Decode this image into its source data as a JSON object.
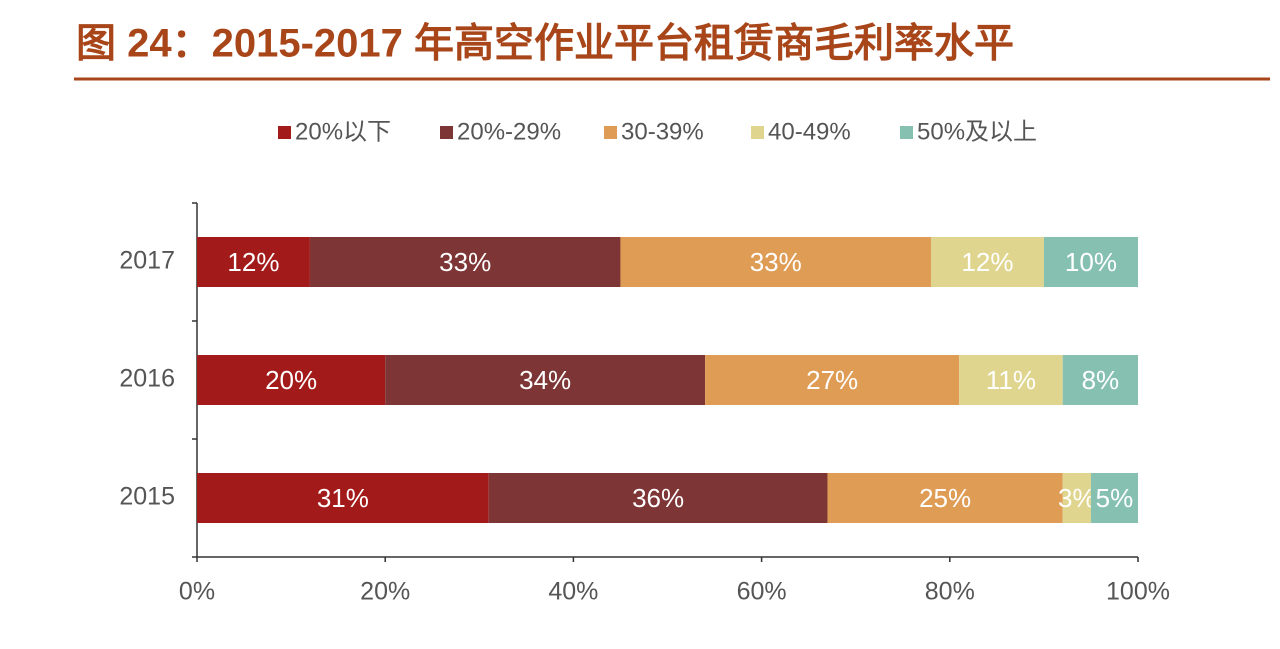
{
  "chart_data": {
    "type": "stacked-bar-horizontal",
    "title": "图 24：2015-2017 年高空作业平台租赁商毛利率水平",
    "categories": [
      "2017",
      "2016",
      "2015"
    ],
    "series": [
      {
        "name": "20%以下",
        "color": "#a31a1a",
        "values": [
          12,
          20,
          31
        ],
        "value_labels": [
          "12%",
          "20%",
          "31%"
        ]
      },
      {
        "name": "20%-29%",
        "color": "#7e3535",
        "values": [
          33,
          34,
          36
        ],
        "value_labels": [
          "33%",
          "34%",
          "36%"
        ]
      },
      {
        "name": "30-39%",
        "color": "#df9c55",
        "values": [
          33,
          27,
          25
        ],
        "value_labels": [
          "33%",
          "27%",
          "25%"
        ]
      },
      {
        "name": "40-49%",
        "color": "#e0d58e",
        "values": [
          12,
          11,
          3
        ],
        "value_labels": [
          "12%",
          "11%",
          "3%"
        ]
      },
      {
        "name": "50%及以上",
        "color": "#86c0b1",
        "values": [
          10,
          8,
          5
        ],
        "value_labels": [
          "10%",
          "8%",
          "5%"
        ]
      }
    ],
    "xlim": [
      0,
      100
    ],
    "xticks": [
      {
        "value": 0,
        "label": "0%"
      },
      {
        "value": 20,
        "label": "20%"
      },
      {
        "value": 40,
        "label": "40%"
      },
      {
        "value": 60,
        "label": "60%"
      },
      {
        "value": 80,
        "label": "80%"
      },
      {
        "value": 100,
        "label": "100%"
      }
    ],
    "legend": "top"
  }
}
